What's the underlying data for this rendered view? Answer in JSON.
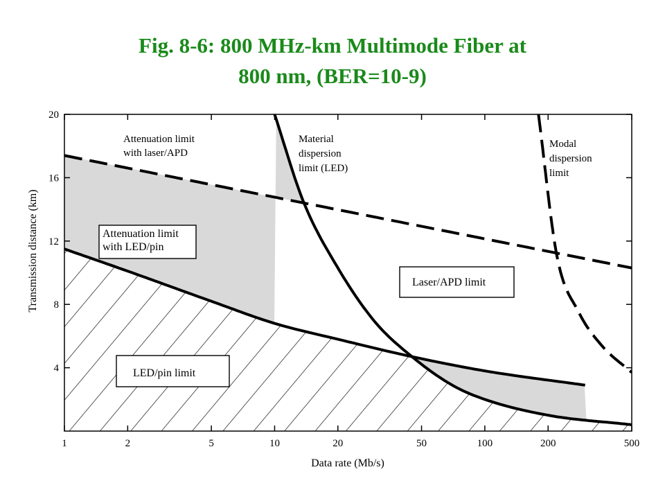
{
  "title": {
    "line1": "Fig. 8-6: 800 MHz-km Multimode Fiber at",
    "line2": "800 nm,  (BER=10-9)"
  },
  "colors": {
    "title": "#1a8a1a",
    "laser_region": "#d9d9d9",
    "ink": "#000000"
  },
  "chart_data": {
    "type": "line",
    "xscale": "log",
    "xlabel": "Data rate (Mb/s)",
    "ylabel": "Transmission distance (km)",
    "xlim": [
      1,
      500
    ],
    "ylim": [
      0,
      20
    ],
    "x_ticks": [
      1,
      2,
      5,
      10,
      20,
      50,
      100,
      200,
      500
    ],
    "y_ticks": [
      4,
      8,
      12,
      16,
      20
    ],
    "y_tick_labels": [
      "4",
      "8",
      "12",
      "16",
      "20"
    ],
    "grid": false,
    "series": [
      {
        "name": "Attenuation limit with laser/APD",
        "style": "dashed",
        "x": [
          1,
          500
        ],
        "y": [
          17.4,
          10.3
        ]
      },
      {
        "name": "Attenuation limit with LED/pin",
        "style": "solid",
        "x": [
          1,
          2,
          5,
          10,
          20,
          45,
          100,
          300
        ],
        "y": [
          11.5,
          10.1,
          8.2,
          6.8,
          5.8,
          4.7,
          3.8,
          2.9
        ]
      },
      {
        "name": "Material dispersion limit (LED)",
        "style": "solid",
        "x": [
          10,
          13.7,
          20,
          30,
          45,
          70,
          100,
          200,
          500
        ],
        "y": [
          20,
          14.5,
          10.3,
          6.9,
          4.7,
          2.9,
          2.0,
          1.0,
          0.4
        ]
      },
      {
        "name": "Modal dispersion limit",
        "style": "dashed",
        "x": [
          180,
          220,
          280,
          360,
          500
        ],
        "y": [
          20,
          11.1,
          7.5,
          5.4,
          3.7
        ]
      }
    ],
    "annotations": [
      {
        "id": "att-apd",
        "lines": [
          "Attenuation limit",
          "with laser/APD"
        ]
      },
      {
        "id": "mat-disp",
        "lines": [
          "Material",
          "dispersion",
          "limit (LED)"
        ]
      },
      {
        "id": "modal-disp",
        "lines": [
          "Modal",
          "dispersion",
          "limit"
        ]
      },
      {
        "id": "att-led",
        "boxed": true,
        "lines": [
          "Attenuation limit",
          "with LED/pin"
        ]
      },
      {
        "id": "laser-box",
        "boxed": true,
        "lines": [
          "Laser/APD limit"
        ]
      },
      {
        "id": "led-box",
        "boxed": true,
        "lines": [
          "LED/pin limit"
        ]
      }
    ]
  }
}
